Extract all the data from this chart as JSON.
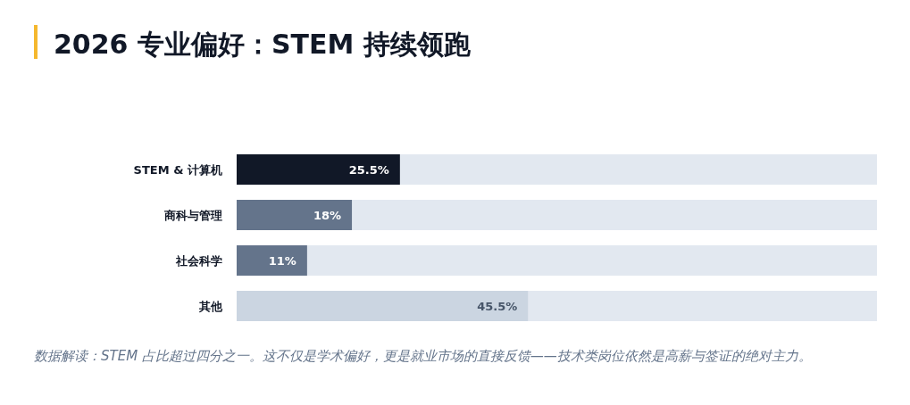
{
  "chart_data": {
    "type": "bar",
    "orientation": "horizontal",
    "title": "2026 专业偏好：STEM 持续领跑",
    "categories": [
      "STEM & 计算机",
      "商科与管理",
      "社会科学",
      "其他"
    ],
    "values": [
      25.5,
      18,
      11,
      45.5
    ],
    "colors": [
      "#111827",
      "#64748b",
      "#64748b",
      "#cbd5e1"
    ],
    "value_labels": [
      "25.5%",
      "18%",
      "11%",
      "45.5%"
    ],
    "xlim": [
      0,
      100
    ],
    "tick_labels": "y",
    "annotations": [
      "数据解读：STEM 占比超过四分之一。这不仅是学术偏好，更是就业市场的直接反馈——技术类岗位依然是高薪与签证的绝对主力。"
    ]
  }
}
